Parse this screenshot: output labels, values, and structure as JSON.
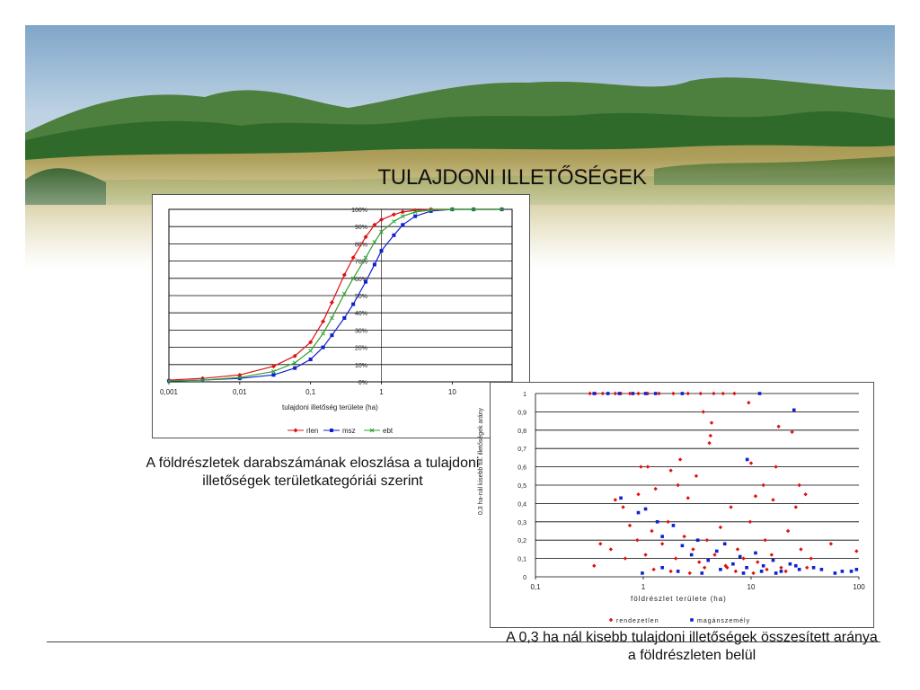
{
  "slide": {
    "title": "TULAJDONI ILLETŐSÉGEK",
    "caption_left": "A földrészletek darabszámának eloszlása a tulajdoni illetőségek területkategóriái szerint",
    "caption_right": "A 0,3 ha nál kisebb tulajdoni illetőségek összesített aránya a földrészleten belül"
  },
  "colors": {
    "sky": "#c9dcea",
    "mountain_far": "#2f6a2a",
    "mountain_near": "#3d7d30",
    "field": "#b9a45e",
    "red": "#e01010",
    "blue": "#1020d0",
    "green": "#30a030"
  },
  "chart_data": [
    {
      "type": "line",
      "title": "",
      "xlabel": "tulajdoni illetőség területe (ha)",
      "ylabel": "",
      "x_scale": "log",
      "xlim": [
        0.001,
        70
      ],
      "ylim": [
        0,
        100
      ],
      "x_ticks": [
        "0,001",
        "0,01",
        "0,1",
        "1",
        "10"
      ],
      "y_ticks": [
        "0%",
        "10%",
        "20%",
        "30%",
        "40%",
        "50%",
        "60%",
        "70%",
        "80%",
        "90%",
        "100%"
      ],
      "grid": true,
      "legend_position": "bottom",
      "x": [
        0.001,
        0.003,
        0.01,
        0.03,
        0.06,
        0.1,
        0.15,
        0.2,
        0.3,
        0.4,
        0.6,
        0.8,
        1,
        1.5,
        2,
        3,
        5,
        10,
        20,
        50
      ],
      "series": [
        {
          "name": "rlen",
          "color": "red",
          "values": [
            1,
            2,
            4,
            9,
            15,
            23,
            35,
            46,
            62,
            72,
            84,
            91,
            94,
            97,
            98.5,
            99.4,
            100,
            100,
            100,
            100
          ]
        },
        {
          "name": "msz",
          "color": "blue",
          "values": [
            0.5,
            1,
            2,
            4,
            8,
            13,
            20,
            27,
            37,
            45,
            58,
            68,
            76,
            85,
            91,
            96,
            99,
            100,
            100,
            100
          ]
        },
        {
          "name": "ebt",
          "color": "green",
          "values": [
            0.5,
            1,
            2.5,
            6,
            11,
            18,
            28,
            37,
            51,
            60,
            72,
            81,
            87,
            93,
            96,
            98.5,
            99.6,
            100,
            100,
            100
          ]
        }
      ]
    },
    {
      "type": "scatter",
      "title": "",
      "xlabel": "földrészlet területe (ha)",
      "ylabel": "0,3 ha-nál kisebb tul. illetőségek arány",
      "x_scale": "log",
      "xlim": [
        0.1,
        100
      ],
      "ylim": [
        0,
        1
      ],
      "x_ticks": [
        "0,1",
        "1",
        "10",
        "100"
      ],
      "y_ticks": [
        "0",
        "0,1",
        "0,2",
        "0,3",
        "0,4",
        "0,5",
        "0,6",
        "0,7",
        "0,8",
        "0,9",
        "1"
      ],
      "grid": true,
      "legend_position": "bottom",
      "series": [
        {
          "name": "rendezetlen",
          "color": "red",
          "points": [
            [
              0.32,
              1
            ],
            [
              0.36,
              1
            ],
            [
              0.42,
              1
            ],
            [
              0.55,
              1
            ],
            [
              0.62,
              1
            ],
            [
              0.75,
              1
            ],
            [
              0.9,
              1
            ],
            [
              1.1,
              1
            ],
            [
              1.4,
              1
            ],
            [
              1.9,
              1
            ],
            [
              2.6,
              1
            ],
            [
              3.4,
              1
            ],
            [
              4.5,
              1
            ],
            [
              5.5,
              1
            ],
            [
              7,
              1
            ],
            [
              3.6,
              0.9
            ],
            [
              4.3,
              0.84
            ],
            [
              4.2,
              0.77
            ],
            [
              4.1,
              0.73
            ],
            [
              9.5,
              0.95
            ],
            [
              18,
              0.82
            ],
            [
              24,
              0.79
            ],
            [
              0.95,
              0.6
            ],
            [
              1.1,
              0.6
            ],
            [
              1.8,
              0.58
            ],
            [
              2.2,
              0.64
            ],
            [
              3.1,
              0.55
            ],
            [
              10,
              0.62
            ],
            [
              17,
              0.6
            ],
            [
              13,
              0.5
            ],
            [
              28,
              0.5
            ],
            [
              32,
              0.45
            ],
            [
              0.55,
              0.42
            ],
            [
              0.65,
              0.38
            ],
            [
              0.9,
              0.45
            ],
            [
              1.3,
              0.48
            ],
            [
              2.1,
              0.5
            ],
            [
              2.6,
              0.43
            ],
            [
              6.5,
              0.38
            ],
            [
              11,
              0.44
            ],
            [
              16,
              0.42
            ],
            [
              26,
              0.38
            ],
            [
              0.4,
              0.18
            ],
            [
              0.5,
              0.15
            ],
            [
              0.75,
              0.28
            ],
            [
              0.88,
              0.2
            ],
            [
              1.05,
              0.12
            ],
            [
              1.2,
              0.25
            ],
            [
              1.5,
              0.18
            ],
            [
              1.7,
              0.3
            ],
            [
              2,
              0.1
            ],
            [
              2.4,
              0.22
            ],
            [
              2.9,
              0.15
            ],
            [
              3.3,
              0.08
            ],
            [
              3.9,
              0.2
            ],
            [
              4.6,
              0.12
            ],
            [
              5.2,
              0.27
            ],
            [
              6,
              0.05
            ],
            [
              7.5,
              0.15
            ],
            [
              8.5,
              0.1
            ],
            [
              9.8,
              0.3
            ],
            [
              11.5,
              0.08
            ],
            [
              13.5,
              0.2
            ],
            [
              15.5,
              0.12
            ],
            [
              19,
              0.05
            ],
            [
              22,
              0.25
            ],
            [
              29,
              0.15
            ],
            [
              36,
              0.1
            ],
            [
              55,
              0.18
            ],
            [
              95,
              0.14
            ],
            [
              0.35,
              0.06
            ],
            [
              0.68,
              0.1
            ],
            [
              1.25,
              0.04
            ],
            [
              1.8,
              0.03
            ],
            [
              2.7,
              0.02
            ],
            [
              3.7,
              0.05
            ],
            [
              5.8,
              0.06
            ],
            [
              7.2,
              0.03
            ],
            [
              10.5,
              0.02
            ],
            [
              14,
              0.04
            ],
            [
              21,
              0.03
            ],
            [
              33,
              0.05
            ]
          ]
        },
        {
          "name": "magánszemély",
          "color": "blue",
          "points": [
            [
              0.35,
              1
            ],
            [
              0.47,
              1
            ],
            [
              0.6,
              1
            ],
            [
              0.8,
              1
            ],
            [
              1.05,
              1
            ],
            [
              1.3,
              1
            ],
            [
              2.3,
              1
            ],
            [
              12,
              1
            ],
            [
              25,
              0.91
            ],
            [
              9.2,
              0.64
            ],
            [
              0.62,
              0.43
            ],
            [
              0.9,
              0.35
            ],
            [
              1.05,
              0.37
            ],
            [
              1.35,
              0.3
            ],
            [
              1.5,
              0.22
            ],
            [
              1.9,
              0.28
            ],
            [
              2.3,
              0.17
            ],
            [
              2.8,
              0.12
            ],
            [
              3.2,
              0.2
            ],
            [
              4,
              0.09
            ],
            [
              4.8,
              0.14
            ],
            [
              5.7,
              0.18
            ],
            [
              6.8,
              0.07
            ],
            [
              7.9,
              0.11
            ],
            [
              9.1,
              0.05
            ],
            [
              11,
              0.13
            ],
            [
              13,
              0.06
            ],
            [
              16,
              0.09
            ],
            [
              19,
              0.03
            ],
            [
              23,
              0.07
            ],
            [
              28,
              0.04
            ],
            [
              38,
              0.05
            ],
            [
              60,
              0.02
            ],
            [
              70,
              0.03
            ],
            [
              85,
              0.03
            ],
            [
              95,
              0.04
            ],
            [
              0.98,
              0.02
            ],
            [
              1.5,
              0.05
            ],
            [
              2.1,
              0.03
            ],
            [
              3.5,
              0.02
            ],
            [
              5.2,
              0.04
            ],
            [
              8.5,
              0.02
            ],
            [
              12.5,
              0.03
            ],
            [
              17,
              0.02
            ],
            [
              26,
              0.06
            ],
            [
              45,
              0.04
            ]
          ]
        }
      ]
    }
  ]
}
